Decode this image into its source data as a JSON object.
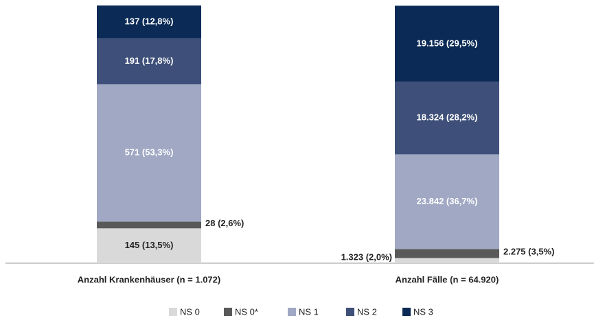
{
  "chart_data": {
    "type": "stacked-bar",
    "categories": [
      "Anzahl Krankenhäuser (n = 1.072)",
      "Anzahl Fälle (n = 64.920)"
    ],
    "ylim": [
      0,
      100
    ],
    "series": [
      {
        "name": "NS 0",
        "color": "#d9d9d9",
        "values": [
          13.5,
          2.0
        ],
        "value_labels": [
          "145 (13,5%)",
          "1.323 (2,0%)"
        ]
      },
      {
        "name": "NS 0*",
        "color": "#595959",
        "values": [
          2.6,
          3.5
        ],
        "value_labels": [
          "28 (2,6%)",
          "2.275 (3,5%)"
        ]
      },
      {
        "name": "NS 1",
        "color": "#a0a8c4",
        "values": [
          53.3,
          36.7
        ],
        "value_labels": [
          "571 (53,3%)",
          "23.842 (36,7%)"
        ]
      },
      {
        "name": "NS 2",
        "color": "#3e5079",
        "values": [
          17.8,
          28.2
        ],
        "value_labels": [
          "191 (17,8%)",
          "18.324 (28,2%)"
        ]
      },
      {
        "name": "NS 3",
        "color": "#0b2b56",
        "values": [
          12.8,
          29.5
        ],
        "value_labels": [
          "137 (12,8%)",
          "19.156 (29,5%)"
        ]
      }
    ]
  }
}
